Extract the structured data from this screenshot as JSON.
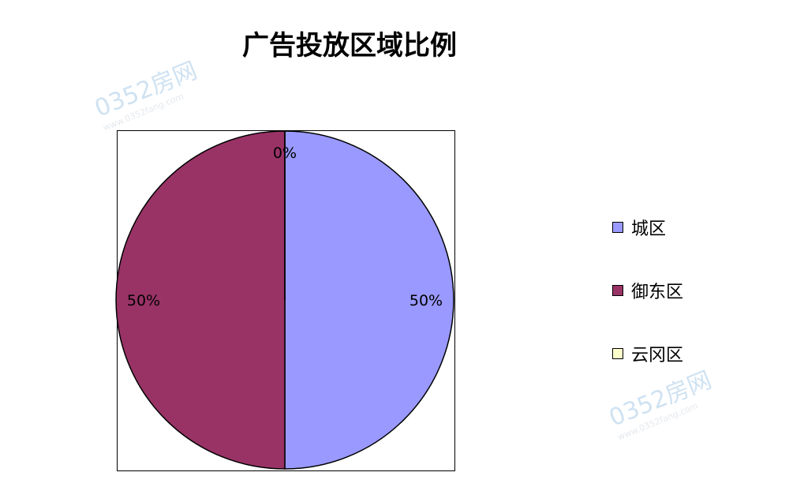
{
  "chart_data": {
    "type": "pie",
    "title": "广告投放区域比例",
    "categories": [
      "城区",
      "御东区",
      "云冈区"
    ],
    "values": [
      50,
      50,
      0
    ],
    "data_labels": [
      "50%",
      "50%",
      "0%"
    ],
    "colors": [
      "#9999FF",
      "#993366",
      "#FFFFCC"
    ],
    "legend_position": "right"
  },
  "watermark": {
    "brand": "0352房网",
    "url": "www.0352fang.com"
  }
}
